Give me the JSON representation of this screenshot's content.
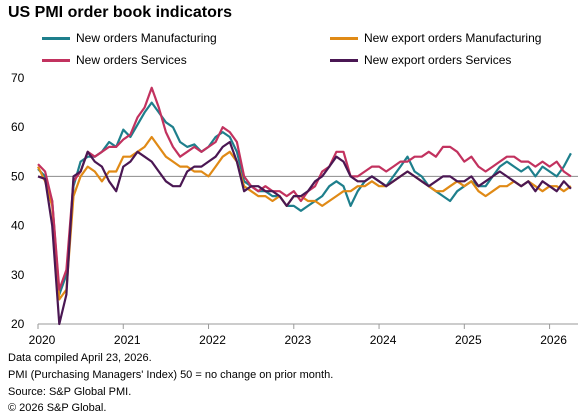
{
  "chart_data": {
    "type": "line",
    "title": "US PMI order book indicators",
    "xlabel": "",
    "ylabel": "",
    "xlim": [
      "2020-01",
      "2026-05"
    ],
    "ylim": [
      20,
      70
    ],
    "y_ticks": [
      20,
      30,
      40,
      50,
      60,
      70
    ],
    "x_tick_labels": [
      "2020",
      "2021",
      "2022",
      "2023",
      "2024",
      "2025",
      "2026"
    ],
    "reference_line": 50,
    "legend_placement": "top",
    "grid": false,
    "x": [
      "2020-01",
      "2020-02",
      "2020-03",
      "2020-04",
      "2020-05",
      "2020-06",
      "2020-07",
      "2020-08",
      "2020-09",
      "2020-10",
      "2020-11",
      "2020-12",
      "2021-01",
      "2021-02",
      "2021-03",
      "2021-04",
      "2021-05",
      "2021-06",
      "2021-07",
      "2021-08",
      "2021-09",
      "2021-10",
      "2021-11",
      "2021-12",
      "2022-01",
      "2022-02",
      "2022-03",
      "2022-04",
      "2022-05",
      "2022-06",
      "2022-07",
      "2022-08",
      "2022-09",
      "2022-10",
      "2022-11",
      "2022-12",
      "2023-01",
      "2023-02",
      "2023-03",
      "2023-04",
      "2023-05",
      "2023-06",
      "2023-07",
      "2023-08",
      "2023-09",
      "2023-10",
      "2023-11",
      "2023-12",
      "2024-01",
      "2024-02",
      "2024-03",
      "2024-04",
      "2024-05",
      "2024-06",
      "2024-07",
      "2024-08",
      "2024-09",
      "2024-10",
      "2024-11",
      "2024-12",
      "2025-01",
      "2025-02",
      "2025-03",
      "2025-04",
      "2025-05",
      "2025-06",
      "2025-07",
      "2025-08",
      "2025-09",
      "2025-10",
      "2025-11",
      "2025-12",
      "2026-01",
      "2026-02",
      "2026-03",
      "2026-04"
    ],
    "series": [
      {
        "name": "New orders Manufacturing",
        "color": "#1e7f8c",
        "legend_row": 0,
        "legend_col": 0,
        "values": [
          51.5,
          50,
          45,
          26,
          30,
          48,
          53,
          54,
          54,
          55,
          57,
          56,
          59.5,
          58,
          60.5,
          63,
          65,
          63,
          61,
          60,
          57,
          56,
          56.5,
          55,
          56,
          58,
          59,
          58,
          55,
          49,
          48,
          47,
          47,
          46,
          46,
          44,
          44,
          43,
          44,
          45,
          46,
          48,
          49,
          48,
          44,
          47,
          49,
          50,
          49,
          48,
          50,
          52,
          54,
          51,
          50,
          48,
          47,
          46,
          45,
          47,
          48,
          49,
          48,
          48,
          50,
          52,
          53,
          52,
          51,
          52,
          50,
          52,
          51,
          50,
          52,
          54.7
        ]
      },
      {
        "name": "New export orders Manufacturing",
        "color": "#e08a16",
        "legend_row": 0,
        "legend_col": 1,
        "values": [
          52,
          49,
          44,
          25,
          27,
          46,
          50,
          52,
          51,
          49,
          51,
          51,
          54,
          54,
          55,
          56,
          58,
          56,
          54,
          53,
          52,
          52,
          51,
          51,
          50,
          52,
          54,
          55,
          53,
          48,
          47,
          46,
          46,
          45,
          46,
          44,
          46,
          46,
          45,
          45,
          44,
          45,
          46,
          47,
          47,
          48,
          48,
          49,
          48,
          48,
          49,
          50,
          51,
          50,
          49,
          48,
          47,
          47,
          48,
          49,
          48,
          49,
          47,
          46,
          47,
          48,
          48,
          49,
          48,
          49,
          48,
          47,
          48,
          48,
          47,
          48
        ]
      },
      {
        "name": "New orders Services",
        "color": "#c2325f",
        "legend_row": 1,
        "legend_col": 0,
        "values": [
          52.5,
          51,
          45,
          27,
          31,
          49,
          51,
          55,
          54,
          55,
          56,
          56,
          57.5,
          58.5,
          62,
          64,
          68,
          64,
          59,
          56,
          54,
          55,
          56,
          55,
          56,
          57,
          60,
          59,
          57,
          50,
          48,
          47,
          48,
          47,
          47,
          46,
          47,
          45,
          47,
          48,
          51,
          52,
          55,
          55,
          50,
          50,
          51,
          52,
          52,
          51,
          52,
          53,
          53,
          54,
          54,
          55,
          54,
          56,
          56,
          55,
          53,
          54,
          52,
          51,
          52,
          53,
          54,
          54,
          53,
          53,
          52,
          53,
          52,
          53,
          51,
          50
        ]
      },
      {
        "name": "New export orders Services",
        "color": "#4a1753",
        "legend_row": 1,
        "legend_col": 1,
        "values": [
          50,
          49.5,
          40,
          20,
          26,
          50,
          51,
          55,
          53,
          52,
          49,
          47,
          52,
          53,
          55,
          54,
          53,
          51,
          49,
          48,
          48,
          51,
          52,
          52,
          53,
          54,
          56,
          57,
          53,
          47,
          48,
          48,
          47,
          47,
          46,
          44,
          46,
          46,
          47,
          49,
          50,
          52,
          54,
          53,
          50,
          49,
          49,
          50,
          49,
          48,
          49,
          50,
          51,
          50,
          49,
          48,
          49,
          50,
          50,
          49,
          49,
          50,
          48,
          49,
          50,
          51,
          50,
          49,
          48,
          49,
          47,
          49,
          48,
          47,
          49,
          47.5
        ]
      }
    ]
  },
  "footnotes": [
    "Data compiled April 23, 2026.",
    "PMI (Purchasing Managers' Index) 50 =  no change on prior month.",
    "Source: S&P Global PMI.",
    "© 2026 S&P Global."
  ]
}
